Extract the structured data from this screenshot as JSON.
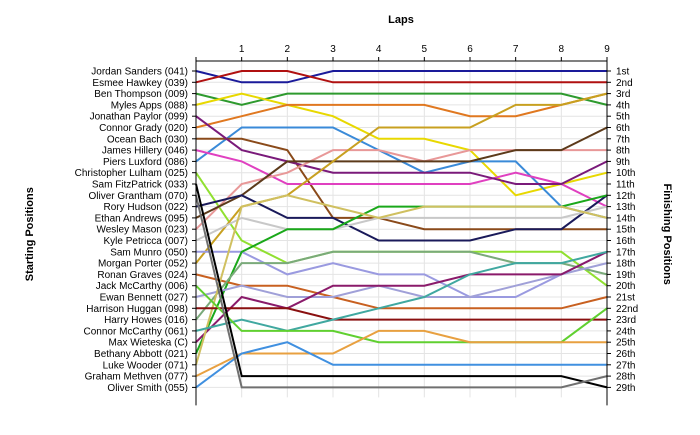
{
  "chart_data": {
    "type": "line",
    "title": "",
    "xlabel": "Laps",
    "ylabel_left": "Starting Positions",
    "ylabel_right": "Finishing Positions",
    "laps": [
      1,
      2,
      3,
      4,
      5,
      6,
      7,
      8,
      9
    ],
    "finishing_labels": [
      "1st",
      "2nd",
      "3rd",
      "4th",
      "5th",
      "6th",
      "7th",
      "8th",
      "9th",
      "10th",
      "11th",
      "12th",
      "13th",
      "14th",
      "15th",
      "16th",
      "17th",
      "18th",
      "19th",
      "20th",
      "21st",
      "22nd",
      "23rd",
      "24th",
      "25th",
      "26th",
      "27th",
      "28th",
      "29th"
    ],
    "grid": true,
    "series": [
      {
        "name": "Jordan Sanders (041)",
        "color": "#1a1a9a",
        "positions": [
          1,
          2,
          2,
          1,
          1,
          1,
          1,
          1,
          1,
          1
        ]
      },
      {
        "name": "Esmee Hawkey (039)",
        "color": "#b01010",
        "positions": [
          2,
          1,
          1,
          2,
          2,
          2,
          2,
          2,
          2,
          2
        ]
      },
      {
        "name": "Ben Thompson (009)",
        "color": "#2e9a2e",
        "positions": [
          3,
          4,
          3,
          3,
          3,
          3,
          3,
          3,
          3,
          4
        ]
      },
      {
        "name": "Myles Apps (088)",
        "color": "#e8d800",
        "positions": [
          4,
          3,
          4,
          5,
          7,
          7,
          8,
          12,
          11,
          10
        ]
      },
      {
        "name": "Connor Grady (020)",
        "color": "#e07820",
        "positions": [
          6,
          5,
          4,
          4,
          4,
          4,
          5,
          5,
          4,
          3
        ]
      },
      {
        "name": "Piers Luxford (086)",
        "color": "#3a8ad8",
        "positions": [
          9,
          6,
          6,
          6,
          8,
          10,
          9,
          9,
          13,
          14
        ]
      },
      {
        "name": "Ocean Bach (030)",
        "color": "#8a4a1a",
        "positions": [
          7,
          7,
          8,
          14,
          14,
          15,
          15,
          15,
          15,
          15
        ]
      },
      {
        "name": "James Hillery (046)",
        "color": "#e040c0",
        "positions": [
          8,
          9,
          11,
          11,
          11,
          11,
          11,
          10,
          11,
          13
        ]
      },
      {
        "name": "Jonathan Paylor (099)",
        "color": "#7a1a7a",
        "positions": [
          5,
          8,
          9,
          10,
          10,
          10,
          10,
          11,
          11,
          9
        ]
      },
      {
        "name": "Christopher Lulham (025)",
        "color": "#90e030",
        "positions": [
          10,
          16,
          18,
          17,
          17,
          17,
          17,
          17,
          17,
          20
        ]
      },
      {
        "name": "Wesley Mason (023)",
        "color": "#e89898",
        "positions": [
          15,
          11,
          10,
          8,
          8,
          9,
          8,
          8,
          8,
          8
        ]
      },
      {
        "name": "Ethan Andrews (095)",
        "color": "#5c3a1a",
        "positions": [
          14,
          12,
          9,
          9,
          9,
          9,
          9,
          8,
          8,
          6
        ]
      },
      {
        "name": "Rory Hudson (022)",
        "color": "#1a1a5a",
        "positions": [
          13,
          12,
          14,
          14,
          16,
          16,
          16,
          15,
          15,
          12
        ]
      },
      {
        "name": "Morgan Porter (052)",
        "color": "#c8a020",
        "positions": [
          18,
          13,
          12,
          9,
          6,
          6,
          6,
          4,
          4,
          3
        ]
      },
      {
        "name": "Kyle Petricca (007)",
        "color": "#c8c8c8",
        "positions": [
          16,
          14,
          15,
          15,
          14,
          14,
          14,
          14,
          14,
          13
        ]
      },
      {
        "name": "Sam Munro (050)",
        "color": "#9a9ae0",
        "positions": [
          17,
          17,
          19,
          18,
          19,
          19,
          21,
          21,
          19,
          17
        ]
      },
      {
        "name": "Bethany Abbott (021)",
        "color": "#1aa81a",
        "positions": [
          26,
          17,
          15,
          15,
          13,
          13,
          13,
          13,
          13,
          12
        ]
      },
      {
        "name": "Ronan Graves (024)",
        "color": "#c86020",
        "positions": [
          19,
          20,
          20,
          21,
          22,
          22,
          22,
          22,
          22,
          21
        ]
      },
      {
        "name": "Harry Howes (016)",
        "color": "#7aaa7a",
        "positions": [
          23,
          18,
          18,
          17,
          17,
          17,
          17,
          18,
          18,
          19
        ]
      },
      {
        "name": "Ewan Bennett (027)",
        "color": "#a0a0d8",
        "positions": [
          21,
          20,
          21,
          21,
          20,
          21,
          21,
          20,
          19,
          18
        ]
      },
      {
        "name": "Max Wieteska (C)",
        "color": "#8a1a6a",
        "positions": [
          25,
          21,
          22,
          20,
          20,
          20,
          19,
          19,
          19,
          17
        ]
      },
      {
        "name": "Luke Wooder (071)",
        "color": "#d0c060",
        "positions": [
          27,
          13,
          12,
          13,
          14,
          13,
          13,
          13,
          13,
          14
        ]
      },
      {
        "name": "Harrison Huggan (098)",
        "color": "#8a1010",
        "positions": [
          22,
          22,
          22,
          23,
          23,
          23,
          23,
          23,
          23,
          23
        ]
      },
      {
        "name": "Connor McCarthy (061)",
        "color": "#40a8a0",
        "positions": [
          24,
          23,
          24,
          23,
          22,
          21,
          19,
          18,
          18,
          17
        ]
      },
      {
        "name": "Jack McCarthy (006)",
        "color": "#60d030",
        "positions": [
          20,
          24,
          24,
          24,
          25,
          25,
          25,
          25,
          25,
          22
        ]
      },
      {
        "name": "Graham Methven (077)",
        "color": "#e8a040",
        "positions": [
          28,
          26,
          26,
          26,
          24,
          24,
          25,
          25,
          25,
          25
        ]
      },
      {
        "name": "Oliver Smith (055)",
        "color": "#4090e0",
        "positions": [
          29,
          26,
          25,
          27,
          27,
          27,
          27,
          27,
          27,
          27
        ]
      },
      {
        "name": "Sam FitzPatrick (033)",
        "color": "#000000",
        "positions": [
          11,
          28,
          28,
          28,
          28,
          28,
          28,
          28,
          28,
          29
        ]
      },
      {
        "name": "Oliver Grantham (070)",
        "color": "#707070",
        "positions": [
          12,
          29,
          29,
          29,
          29,
          29,
          29,
          29,
          29,
          28
        ]
      }
    ]
  }
}
